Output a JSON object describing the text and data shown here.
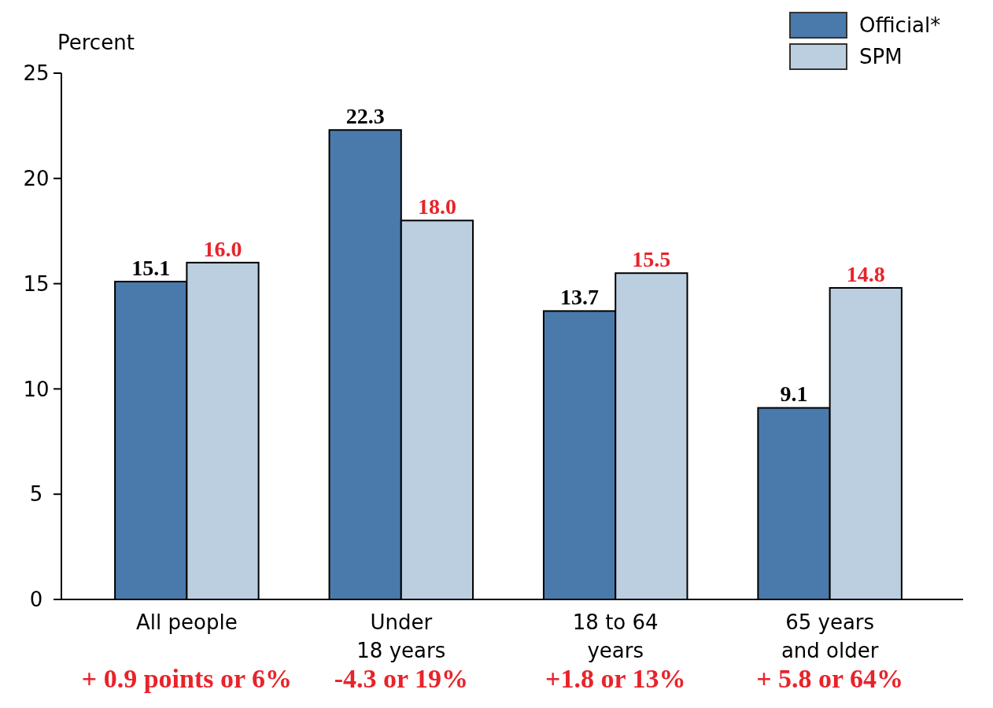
{
  "chart_data": {
    "type": "bar",
    "ylabel": "Percent",
    "categories": [
      "All people",
      "Under\n18 years",
      "18 to 64\nyears",
      "65 years\nand older"
    ],
    "series": [
      {
        "name": "Official*",
        "color": "#4a7aab",
        "values": [
          15.1,
          22.3,
          13.7,
          9.1
        ],
        "value_labels": [
          "15.1",
          "22.3",
          "13.7",
          "9.1"
        ]
      },
      {
        "name": "SPM",
        "color": "#bccfe0",
        "values": [
          16.0,
          18.0,
          15.5,
          14.8
        ],
        "value_labels": [
          "16.0",
          "18.0",
          "15.5",
          "14.8"
        ]
      }
    ],
    "ylim": [
      0,
      25
    ],
    "yticks": [
      0,
      5,
      10,
      15,
      20,
      25
    ],
    "grid": false,
    "legend": "top right",
    "annotations": [
      "+ 0.9 points or 6%",
      "-4.3 or 19%",
      "+1.8 or 13%",
      "+ 5.8 or 64%"
    ]
  }
}
